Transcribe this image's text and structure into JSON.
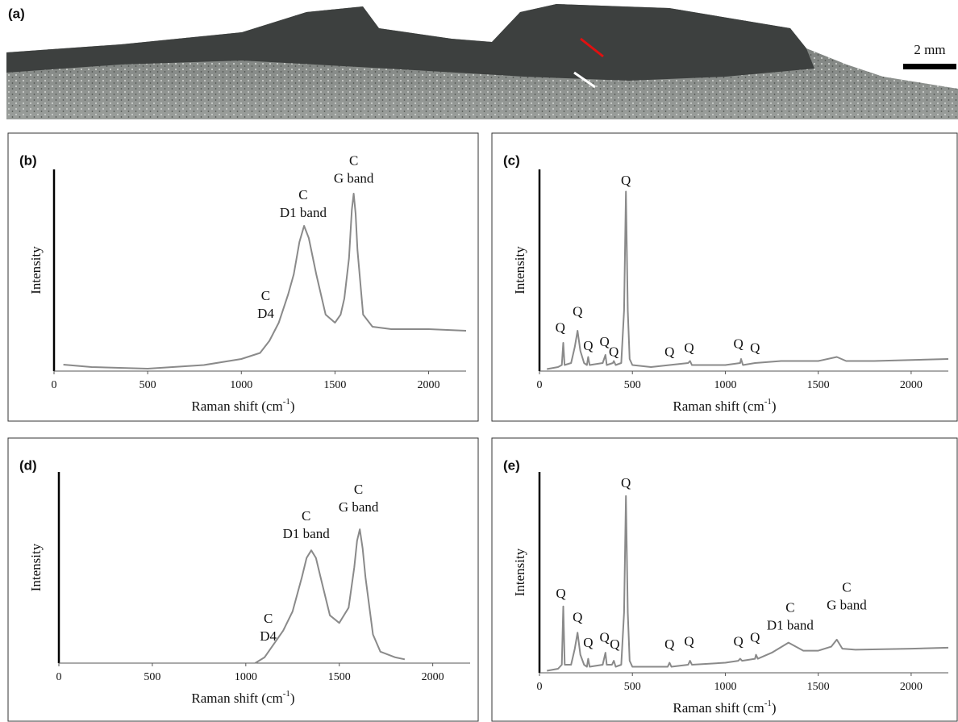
{
  "photo": {
    "label": "(a)",
    "scale_bar": "2 mm"
  },
  "chart_data": [
    {
      "type": "line",
      "label": "(b)",
      "y_label": "Intensity",
      "x_label": {
        "text": "Raman shift (cm",
        "sup": "-1",
        "after": ")"
      },
      "xlim": [
        0,
        2200
      ],
      "ylim": [
        0,
        100
      ],
      "xticks": [
        0,
        500,
        1000,
        1500,
        2000
      ],
      "series": [
        {
          "color": "#8a8a8a",
          "x": [
            50,
            200,
            500,
            800,
            1000,
            1100,
            1150,
            1200,
            1250,
            1280,
            1310,
            1335,
            1360,
            1400,
            1450,
            1500,
            1530,
            1550,
            1575,
            1590,
            1600,
            1610,
            1620,
            1650,
            1700,
            1800,
            2000,
            2200
          ],
          "values": [
            3.2,
            2,
            1.2,
            3,
            6,
            9,
            15,
            24,
            38,
            48,
            64,
            72,
            66,
            48,
            28,
            24,
            28,
            36,
            56,
            80,
            88,
            78,
            60,
            28,
            22,
            20.8,
            20.8,
            20
          ]
        }
      ],
      "annotations": [
        {
          "text": [
            "C",
            "G band"
          ],
          "x": 1600,
          "y": 95
        },
        {
          "text": [
            "C",
            "D1 band"
          ],
          "x": 1330,
          "y": 78
        },
        {
          "text": [
            "C",
            "D4"
          ],
          "x": 1130,
          "y": 28
        }
      ]
    },
    {
      "type": "line",
      "label": "(c)",
      "y_label": "Intensity",
      "x_label": {
        "text": "Raman shift (cm",
        "sup": "-1",
        "after": ")"
      },
      "xlim": [
        0,
        2200
      ],
      "ylim": [
        0,
        100
      ],
      "xticks": [
        0,
        500,
        1000,
        1500,
        2000
      ],
      "series": [
        {
          "color": "#8a8a8a",
          "x": [
            40,
            100,
            120,
            128,
            135,
            170,
            190,
            205,
            220,
            240,
            255,
            262,
            270,
            340,
            355,
            362,
            395,
            400,
            410,
            440,
            455,
            465,
            475,
            485,
            500,
            600,
            700,
            800,
            810,
            820,
            1000,
            1080,
            1085,
            1095,
            1160,
            1300,
            1500,
            1600,
            1650,
            1800,
            2200
          ],
          "values": [
            1,
            2,
            3,
            14,
            3,
            4,
            12,
            20,
            10,
            4,
            3,
            7,
            3,
            4,
            8,
            3,
            4,
            5,
            3,
            4,
            30,
            89,
            30,
            6,
            3,
            2,
            3,
            4,
            5,
            3,
            3,
            4,
            6,
            3,
            4,
            5,
            5,
            7,
            5,
            5,
            6
          ]
        }
      ],
      "annotations": [
        {
          "text": [
            "Q"
          ],
          "x": 465,
          "y": 94
        },
        {
          "text": [
            "Q"
          ],
          "x": 112,
          "y": 21
        },
        {
          "text": [
            "Q"
          ],
          "x": 205,
          "y": 29
        },
        {
          "text": [
            "Q"
          ],
          "x": 262,
          "y": 12
        },
        {
          "text": [
            "Q"
          ],
          "x": 350,
          "y": 14
        },
        {
          "text": [
            "Q"
          ],
          "x": 400,
          "y": 9
        },
        {
          "text": [
            "Q"
          ],
          "x": 700,
          "y": 9
        },
        {
          "text": [
            "Q"
          ],
          "x": 805,
          "y": 11
        },
        {
          "text": [
            "Q"
          ],
          "x": 1070,
          "y": 13
        },
        {
          "text": [
            "Q"
          ],
          "x": 1160,
          "y": 11
        }
      ]
    },
    {
      "type": "line",
      "label": "(d)",
      "y_label": "Intensity",
      "x_label": {
        "text": "Raman shift (cm",
        "sup": "-1",
        "after": ")"
      },
      "xlim": [
        0,
        2200
      ],
      "ylim": [
        0,
        100
      ],
      "xticks": [
        0,
        500,
        1000,
        1500,
        2000
      ],
      "series": [
        {
          "color": "#8a8a8a",
          "x": [
            1050,
            1100,
            1150,
            1200,
            1250,
            1300,
            1325,
            1350,
            1375,
            1400,
            1450,
            1500,
            1550,
            1580,
            1595,
            1610,
            1625,
            1640,
            1680,
            1720,
            1800,
            1850
          ],
          "values": [
            0,
            3,
            10,
            17,
            27,
            45,
            55,
            59,
            55,
            45,
            25,
            21,
            29,
            50,
            64,
            70,
            60,
            45,
            15,
            6,
            3,
            2
          ]
        }
      ],
      "annotations": [
        {
          "text": [
            "C",
            "G band"
          ],
          "x": 1603,
          "y": 81
        },
        {
          "text": [
            "C",
            "D1 band"
          ],
          "x": 1323,
          "y": 67
        },
        {
          "text": [
            "C",
            "D4"
          ],
          "x": 1120,
          "y": 13.5
        }
      ]
    },
    {
      "type": "line",
      "label": "(e)",
      "y_label": "Intensity",
      "x_label": {
        "text": "Raman shift (cm",
        "sup": "-1",
        "after": ")"
      },
      "xlim": [
        0,
        2200
      ],
      "ylim": [
        0,
        100
      ],
      "xticks": [
        0,
        500,
        1000,
        1500,
        2000
      ],
      "series": [
        {
          "color": "#8a8a8a",
          "x": [
            40,
            100,
            120,
            128,
            136,
            170,
            190,
            205,
            220,
            240,
            255,
            262,
            270,
            340,
            355,
            362,
            390,
            400,
            410,
            440,
            455,
            465,
            475,
            485,
            500,
            600,
            690,
            700,
            710,
            800,
            810,
            820,
            1000,
            1070,
            1080,
            1090,
            1160,
            1165,
            1175,
            1250,
            1340,
            1420,
            1500,
            1570,
            1600,
            1630,
            1700,
            2000,
            2200
          ],
          "values": [
            1,
            2,
            4,
            33,
            4,
            4,
            12,
            20,
            9,
            4,
            3,
            7,
            3,
            4,
            10,
            4,
            4,
            6,
            3,
            4,
            30,
            88,
            30,
            6,
            3,
            3,
            3,
            5,
            3,
            4,
            6,
            4,
            5,
            6,
            7,
            6,
            7,
            9,
            7,
            10,
            15,
            11,
            11,
            13,
            16.5,
            12,
            11.5,
            12,
            12.5
          ]
        }
      ],
      "annotations": [
        {
          "text": [
            "Q"
          ],
          "x": 465,
          "y": 94
        },
        {
          "text": [
            "Q"
          ],
          "x": 115,
          "y": 39
        },
        {
          "text": [
            "Q"
          ],
          "x": 205,
          "y": 27
        },
        {
          "text": [
            "Q"
          ],
          "x": 262,
          "y": 14.5
        },
        {
          "text": [
            "Q"
          ],
          "x": 350,
          "y": 17
        },
        {
          "text": [
            "Q"
          ],
          "x": 405,
          "y": 13.6
        },
        {
          "text": [
            "Q"
          ],
          "x": 700,
          "y": 13.6
        },
        {
          "text": [
            "Q"
          ],
          "x": 805,
          "y": 15
        },
        {
          "text": [
            "Q"
          ],
          "x": 1070,
          "y": 15
        },
        {
          "text": [
            "Q"
          ],
          "x": 1160,
          "y": 17
        },
        {
          "text": [
            "C",
            "D1 band"
          ],
          "x": 1349,
          "y": 23
        },
        {
          "text": [
            "C",
            "G band"
          ],
          "x": 1653,
          "y": 33
        }
      ]
    }
  ]
}
